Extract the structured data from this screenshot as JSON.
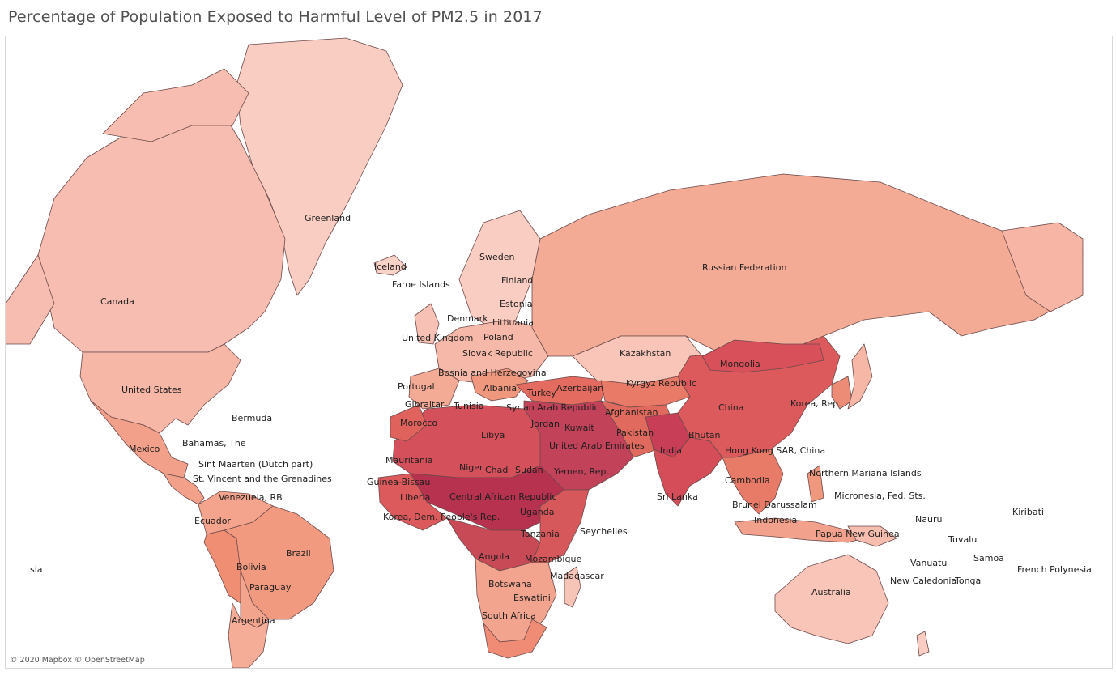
{
  "title": "Percentage of Population Exposed to Harmful Level of PM2.5 in 2017",
  "attribution": "© 2020 Mapbox © OpenStreetMap",
  "colors": {
    "ocean": "#ffffff",
    "no_data": "#e6e6e6",
    "scale_low": "#f9cfc5",
    "scale_mid": "#ee8668",
    "scale_high": "#b5324f",
    "border": "#6b4a4a"
  },
  "labels": {
    "greenland": "Greenland",
    "canada": "Canada",
    "united_states": "United States",
    "mexico": "Mexico",
    "bermuda": "Bermuda",
    "bahamas": "Bahamas, The",
    "sint_maarten": "Sint Maarten (Dutch part)",
    "st_vincent": "St. Vincent and the Grenadines",
    "venezuela": "Venezuela, RB",
    "ecuador": "Ecuador",
    "brazil": "Brazil",
    "bolivia": "Bolivia",
    "paraguay": "Paraguay",
    "argentina": "Argentina",
    "iceland": "Iceland",
    "faroe": "Faroe Islands",
    "sweden": "Sweden",
    "finland": "Finland",
    "estonia": "Estonia",
    "denmark": "Denmark",
    "lithuania": "Lithuania",
    "uk": "United Kingdom",
    "poland": "Poland",
    "slovak": "Slovak Republic",
    "bosnia": "Bosnia and Herzegovina",
    "portugal": "Portugal",
    "albania": "Albania",
    "gibraltar": "Gibraltar",
    "tunisia": "Tunisia",
    "morocco": "Morocco",
    "turkey": "Turkey",
    "azerbaijan": "Azerbaijan",
    "syria": "Syrian Arab Republic",
    "jordan": "Jordan",
    "kuwait": "Kuwait",
    "libya": "Libya",
    "uae": "United Arab Emirates",
    "mauritania": "Mauritania",
    "niger": "Niger",
    "chad": "Chad",
    "sudan": "Sudan",
    "yemen": "Yemen, Rep.",
    "guinea_bissau": "Guinea-Bissau",
    "liberia": "Liberia",
    "car": "Central African Republic",
    "korea_dem": "Korea, Dem. People's Rep.",
    "uganda": "Uganda",
    "tanzania": "Tanzania",
    "seychelles": "Seychelles",
    "angola": "Angola",
    "mozambique": "Mozambique",
    "madagascar": "Madagascar",
    "botswana": "Botswana",
    "eswatini": "Eswatini",
    "south_africa": "South Africa",
    "russia": "Russian Federation",
    "kazakhstan": "Kazakhstan",
    "mongolia": "Mongolia",
    "kyrgyz": "Kyrgyz Republic",
    "afghanistan": "Afghanistan",
    "pakistan": "Pakistan",
    "india": "India",
    "china": "China",
    "korea_rep": "Korea, Rep.",
    "bhutan": "Bhutan",
    "hong_kong": "Hong Kong SAR, China",
    "sri_lanka": "Sri Lanka",
    "cambodia": "Cambodia",
    "brunei": "Brunei Darussalam",
    "indonesia": "Indonesia",
    "png": "Papua New Guinea",
    "n_mariana": "Northern Mariana Islands",
    "micronesia": "Micronesia, Fed. Sts.",
    "nauru": "Nauru",
    "kiribati": "Kiribati",
    "tuvalu": "Tuvalu",
    "vanuatu": "Vanuatu",
    "samoa": "Samoa",
    "new_caledonia": "New Caledonia",
    "tonga": "Tonga",
    "french_polynesia": "French Polynesia",
    "asia_fragment": "sia",
    "australia": "Australia"
  }
}
